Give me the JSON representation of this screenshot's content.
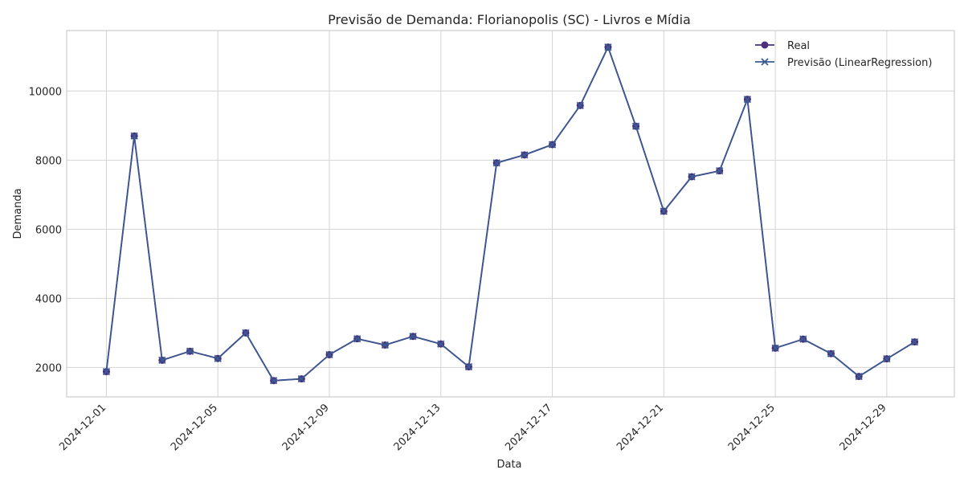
{
  "chart_data": {
    "type": "line",
    "title": "Previsão de Demanda: Florianopolis (SC) - Livros e Mídia",
    "xlabel": "Data",
    "ylabel": "Demanda",
    "ylim": [
      1150,
      11750
    ],
    "xlim": [
      "2024-11-29T13:48",
      "2024-12-31T10:12"
    ],
    "yticks": [
      2000,
      4000,
      6000,
      8000,
      10000
    ],
    "xticks": [
      "2024-12-01",
      "2024-12-05",
      "2024-12-09",
      "2024-12-13",
      "2024-12-17",
      "2024-12-21",
      "2024-12-25",
      "2024-12-29"
    ],
    "grid": true,
    "legend_position": "top-right",
    "x": [
      "2024-12-01",
      "2024-12-02",
      "2024-12-03",
      "2024-12-04",
      "2024-12-05",
      "2024-12-06",
      "2024-12-07",
      "2024-12-08",
      "2024-12-09",
      "2024-12-10",
      "2024-12-11",
      "2024-12-12",
      "2024-12-13",
      "2024-12-14",
      "2024-12-15",
      "2024-12-16",
      "2024-12-17",
      "2024-12-18",
      "2024-12-19",
      "2024-12-20",
      "2024-12-21",
      "2024-12-22",
      "2024-12-23",
      "2024-12-24",
      "2024-12-25",
      "2024-12-26",
      "2024-12-27",
      "2024-12-28",
      "2024-12-29",
      "2024-12-30"
    ],
    "series": [
      {
        "name": "Real",
        "marker": "circle",
        "color": "#4a2f7e",
        "values": [
          1880,
          8700,
          2210,
          2470,
          2260,
          3000,
          1620,
          1670,
          2370,
          2830,
          2650,
          2900,
          2680,
          2020,
          7920,
          8150,
          8450,
          9580,
          11270,
          8980,
          6520,
          7520,
          7690,
          9760,
          2560,
          2820,
          2400,
          1740,
          2250,
          2740
        ]
      },
      {
        "name": "Previsão (LinearRegression)",
        "marker": "x",
        "color": "#3b5b92",
        "values": [
          1880,
          8700,
          2210,
          2470,
          2260,
          3000,
          1620,
          1670,
          2370,
          2830,
          2650,
          2900,
          2680,
          2020,
          7920,
          8150,
          8450,
          9580,
          11270,
          8980,
          6520,
          7520,
          7690,
          9760,
          2560,
          2820,
          2400,
          1740,
          2250,
          2740
        ]
      }
    ]
  }
}
